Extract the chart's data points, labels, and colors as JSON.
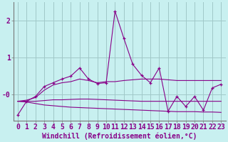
{
  "xlabel": "Windchill (Refroidissement éolien,°C)",
  "background_color": "#c8f0f0",
  "grid_color": "#a0c8c8",
  "line_color": "#880088",
  "x_hours": [
    0,
    1,
    2,
    3,
    4,
    5,
    6,
    7,
    8,
    9,
    10,
    11,
    12,
    13,
    14,
    15,
    16,
    17,
    18,
    19,
    20,
    21,
    22,
    23
  ],
  "line1_y": [
    -0.55,
    -0.18,
    -0.05,
    0.22,
    0.32,
    0.42,
    0.5,
    0.72,
    0.42,
    0.3,
    0.32,
    2.25,
    1.52,
    0.82,
    0.52,
    0.32,
    0.72,
    -0.45,
    -0.05,
    -0.32,
    -0.05,
    -0.42,
    0.18,
    0.28
  ],
  "line2_y": [
    -0.18,
    -0.15,
    -0.08,
    0.12,
    0.26,
    0.32,
    0.35,
    0.42,
    0.38,
    0.32,
    0.35,
    0.35,
    0.38,
    0.4,
    0.42,
    0.42,
    0.42,
    0.4,
    0.38,
    0.38,
    0.38,
    0.38,
    0.38,
    0.38
  ],
  "line3_y": [
    -0.18,
    -0.18,
    -0.18,
    -0.16,
    -0.14,
    -0.14,
    -0.13,
    -0.12,
    -0.12,
    -0.13,
    -0.14,
    -0.15,
    -0.16,
    -0.17,
    -0.18,
    -0.18,
    -0.18,
    -0.18,
    -0.18,
    -0.18,
    -0.18,
    -0.18,
    -0.18,
    -0.18
  ],
  "line4_y": [
    -0.18,
    -0.2,
    -0.24,
    -0.28,
    -0.3,
    -0.32,
    -0.34,
    -0.35,
    -0.36,
    -0.37,
    -0.38,
    -0.39,
    -0.4,
    -0.41,
    -0.42,
    -0.43,
    -0.44,
    -0.45,
    -0.46,
    -0.46,
    -0.46,
    -0.47,
    -0.47,
    -0.48
  ],
  "ylim": [
    -0.7,
    2.5
  ],
  "xlim": [
    -0.5,
    23.5
  ],
  "ytick_vals": [
    0.0,
    1.0,
    2.0
  ],
  "ytick_labels": [
    "-0",
    "1",
    "2"
  ],
  "xlabel_fontsize": 7,
  "tick_fontsize": 7
}
